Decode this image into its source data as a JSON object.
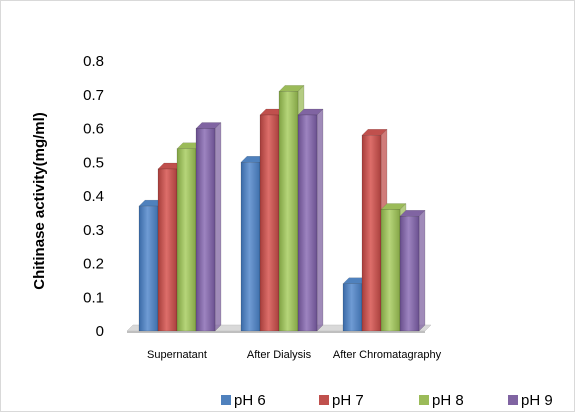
{
  "chart_data": {
    "type": "bar",
    "style": "3d-clustered-column",
    "title": "",
    "xlabel": "",
    "ylabel": "Chitinase activity(mg/ml)",
    "ylim": [
      0,
      0.8
    ],
    "yticks": [
      "0",
      "0.1",
      "0.2",
      "0.3",
      "0.4",
      "0.5",
      "0.6",
      "0.7",
      "0.8"
    ],
    "grid": false,
    "legend_position": "bottom",
    "categories": [
      "Supernatant",
      "After Dialysis",
      "After Chromatagraphy"
    ],
    "series": [
      {
        "name": "pH 6",
        "color": "#4f81bd",
        "values": [
          0.37,
          0.5,
          0.14
        ]
      },
      {
        "name": "pH 7",
        "color": "#c0504d",
        "values": [
          0.48,
          0.64,
          0.58
        ]
      },
      {
        "name": "pH 8",
        "color": "#9bbb59",
        "values": [
          0.54,
          0.71,
          0.36
        ]
      },
      {
        "name": "pH 9",
        "color": "#8064a2",
        "values": [
          0.6,
          0.64,
          0.34
        ]
      }
    ]
  }
}
